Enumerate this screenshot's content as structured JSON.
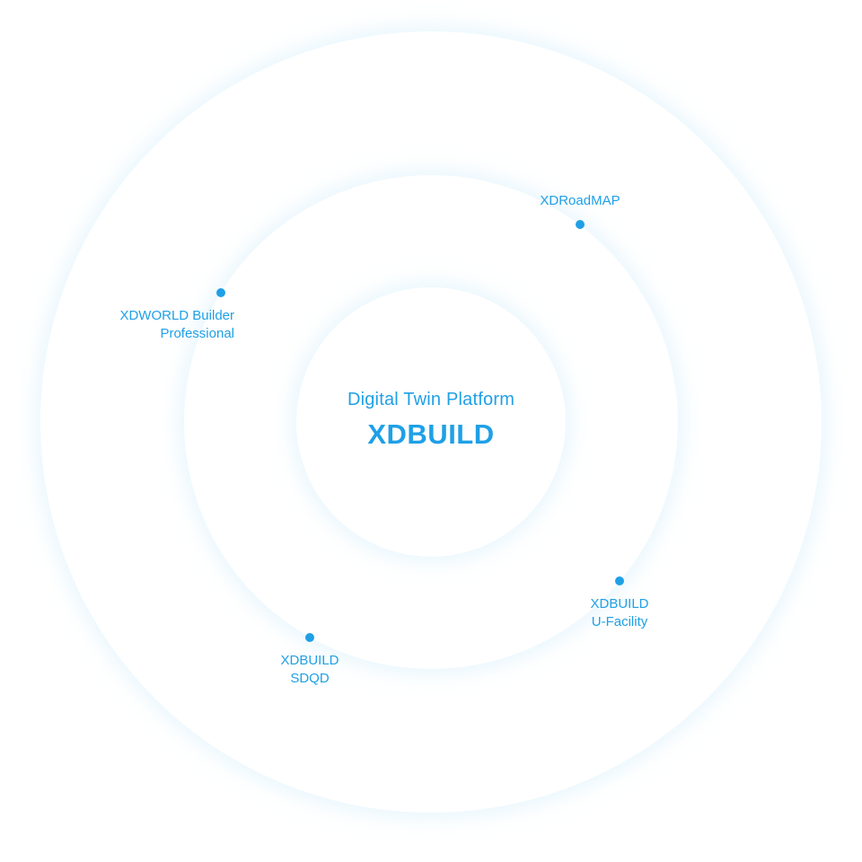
{
  "center": {
    "subtitle": "Digital Twin Platform",
    "title": "XDBUILD"
  },
  "nodes": [
    {
      "id": "xdroadmap",
      "lines": [
        "XDRoadMAP"
      ]
    },
    {
      "id": "xdworld-builder",
      "lines": [
        "XDWORLD Builder",
        "Professional"
      ]
    },
    {
      "id": "xdbuild-ufacility",
      "lines": [
        "XDBUILD",
        "U-Facility"
      ]
    },
    {
      "id": "xdbuild-sdqd",
      "lines": [
        "XDBUILD",
        "SDQD"
      ]
    }
  ],
  "colors": {
    "accent": "#1fa0e6",
    "ring_glow": "#d6eefc",
    "background": "#ffffff"
  }
}
